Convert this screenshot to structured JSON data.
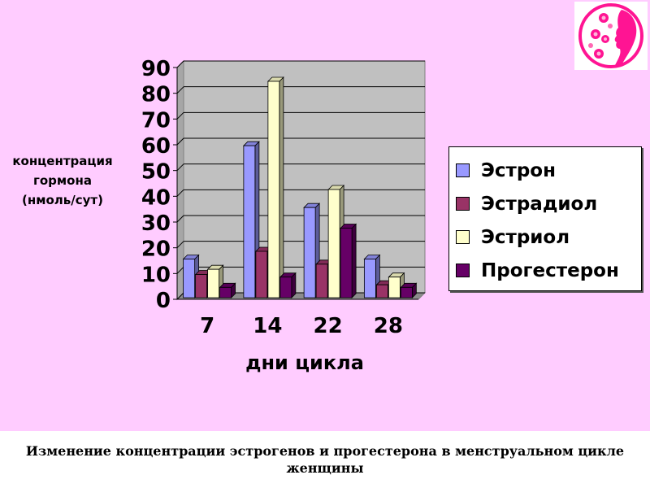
{
  "colors": {
    "background": "#FFCCFF",
    "plot_background": "#C0C0C0",
    "estron": "#9999FF",
    "estradiol": "#993366",
    "estriol": "#FFFFCC",
    "progesterone": "#660066"
  },
  "chart_data": {
    "type": "bar",
    "title": "",
    "xlabel": "дни цикла",
    "ylabel": "концентрация гормона (нмоль/сут)",
    "ylabel_lines": [
      "концентрация",
      "гормона",
      "(нмоль/сут)"
    ],
    "categories": [
      "7",
      "14",
      "22",
      "28"
    ],
    "ylim": [
      0,
      90
    ],
    "yticks": [
      "0",
      "10",
      "20",
      "30",
      "40",
      "50",
      "60",
      "70",
      "80",
      "90"
    ],
    "grid": true,
    "legend_position": "right",
    "series": [
      {
        "name": "Эстрон",
        "values": [
          15,
          59,
          35,
          15
        ],
        "color": "#9999FF"
      },
      {
        "name": "Эстрадиол",
        "values": [
          9,
          18,
          13,
          5
        ],
        "color": "#993366"
      },
      {
        "name": "Эстриол",
        "values": [
          11,
          84,
          42,
          8
        ],
        "color": "#FFFFCC"
      },
      {
        "name": "Прогестерон",
        "values": [
          4,
          8,
          27,
          4
        ],
        "color": "#660066"
      }
    ]
  },
  "caption": "Изменение концентрации эстрогенов и прогестерона в менструальном цикле женщины",
  "logo": {
    "icon": "woman-profile-flowers-icon",
    "color": "#FF1493"
  }
}
